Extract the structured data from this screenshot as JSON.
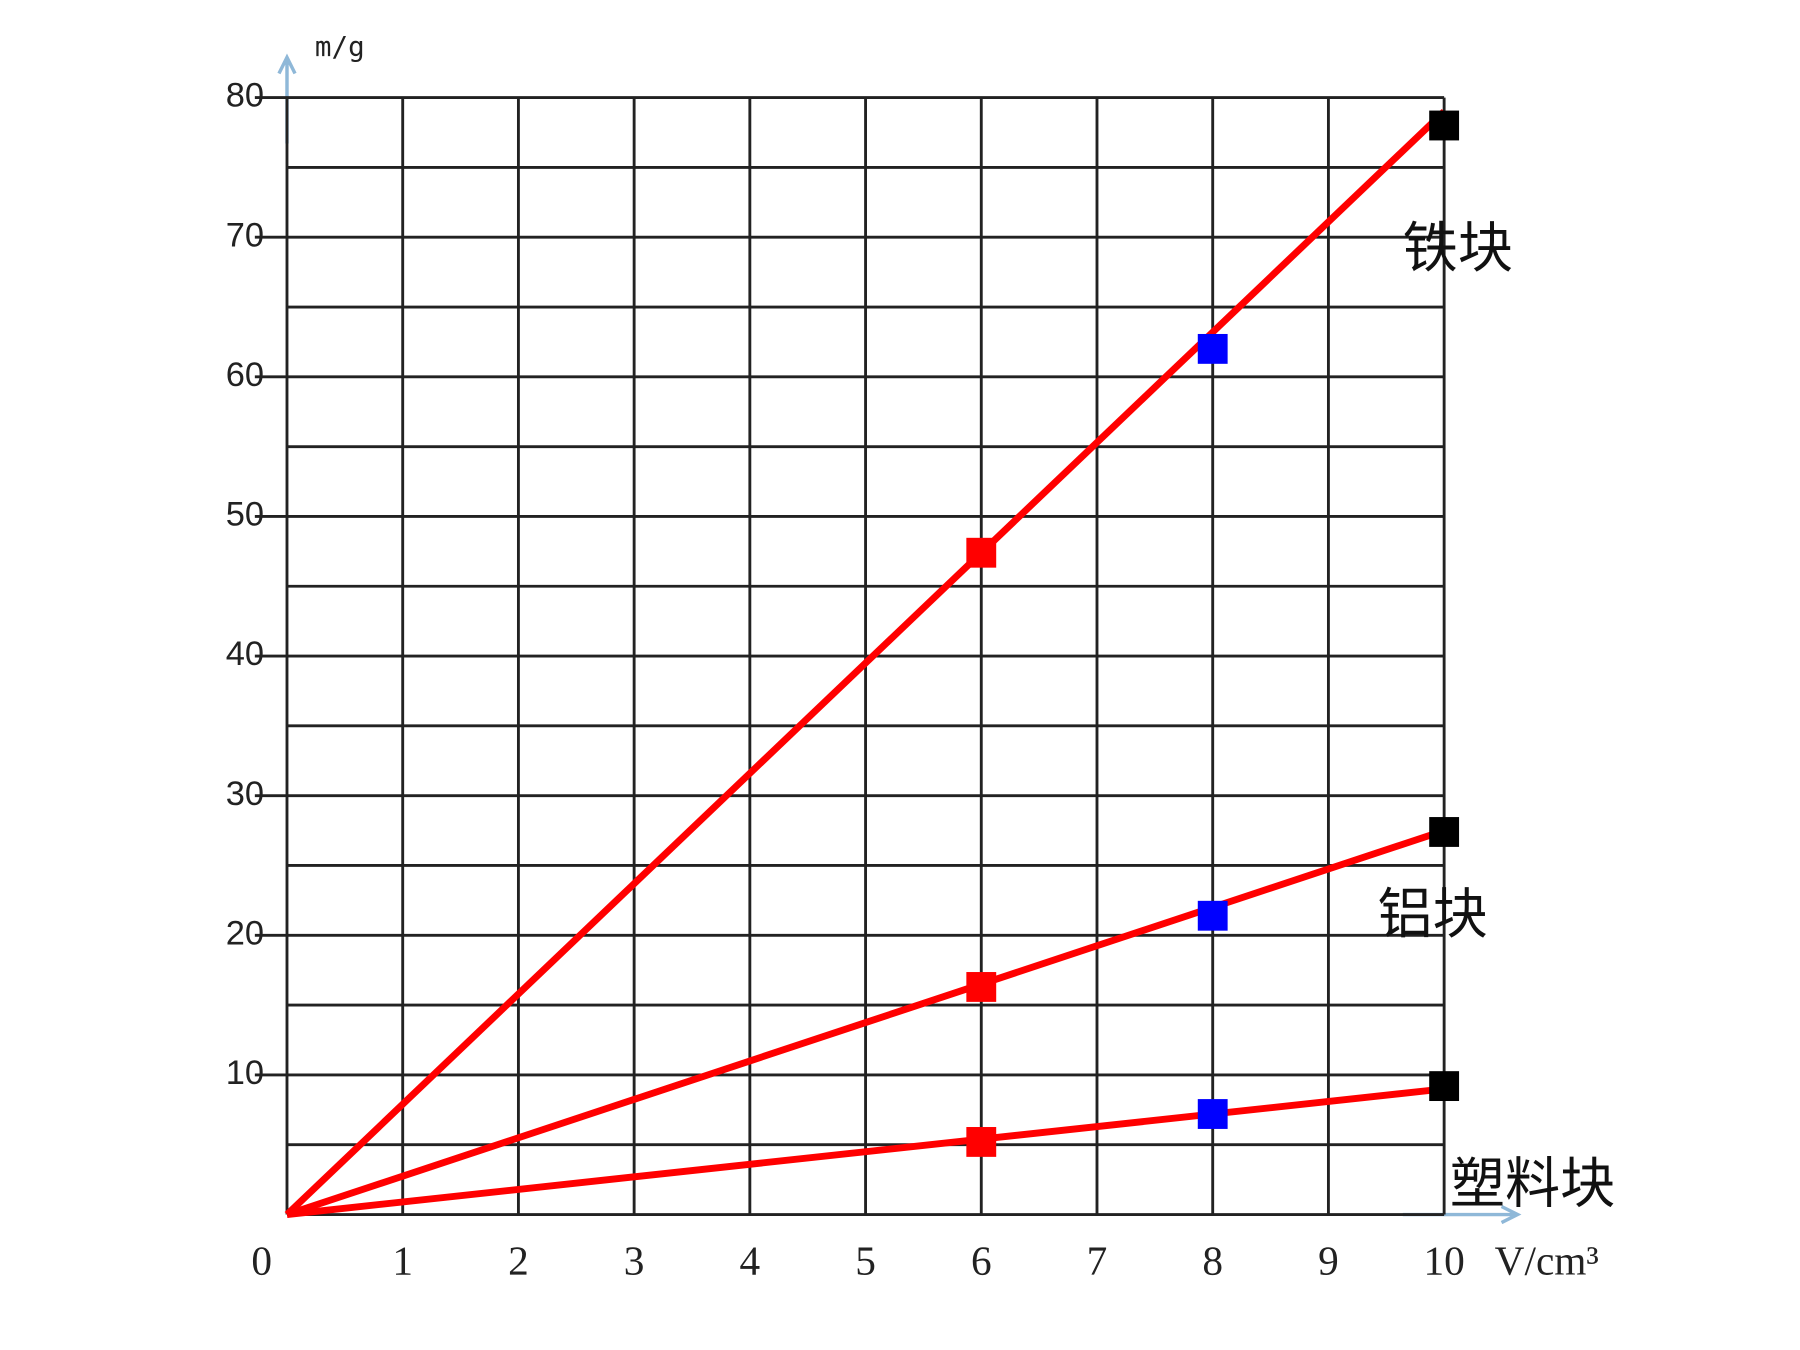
{
  "chart_data": {
    "type": "line",
    "x_label": "V/cm³",
    "y_label": "m/g",
    "x": [
      6,
      8,
      10
    ],
    "fit_x": [
      0,
      10
    ],
    "xlim": [
      0,
      10
    ],
    "ylim": [
      0,
      80
    ],
    "xticks": [
      0,
      1,
      2,
      3,
      4,
      5,
      6,
      7,
      8,
      9,
      10
    ],
    "yticks": [
      10,
      20,
      30,
      40,
      50,
      60,
      70,
      80
    ],
    "y_minor_ticks": [
      5,
      15,
      25,
      35,
      45,
      55,
      65,
      75
    ],
    "grid": true,
    "line_color": "#ff0000",
    "point_colors": [
      "#ff0000",
      "#0000ff",
      "#000000"
    ],
    "series": [
      {
        "name": "铁块",
        "values": [
          47.4,
          62,
          78
        ],
        "fit": [
          0,
          79
        ]
      },
      {
        "name": "铝块",
        "values": [
          16.3,
          21.4,
          27.4
        ],
        "fit": [
          0,
          27.5
        ]
      },
      {
        "name": "塑料块",
        "values": [
          5.2,
          7.2,
          9.2
        ],
        "fit": [
          0,
          9
        ]
      }
    ]
  }
}
